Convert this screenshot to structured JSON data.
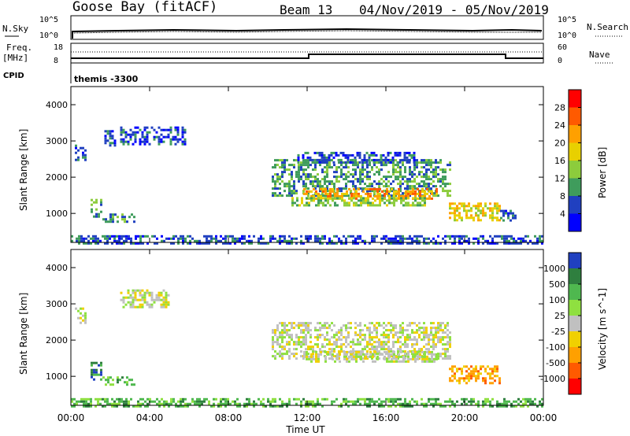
{
  "header": {
    "station": "Goose Bay (fitACF)",
    "beam": "Beam 13",
    "dates": "04/Nov/2019 - 05/Nov/2019"
  },
  "top_panels": {
    "noise": {
      "left_label": "N.Sky",
      "right_label": "N.Search",
      "left_ticks": [
        "10^5",
        "10^0"
      ],
      "right_ticks": [
        "10^5",
        "10^0"
      ]
    },
    "freq": {
      "left_label_1": "Freq.",
      "left_label_2": "[MHz]",
      "right_label": "Nave",
      "left_ticks": [
        "18",
        "8"
      ],
      "right_ticks": [
        "60",
        "0"
      ]
    },
    "cpid": {
      "label": "CPID",
      "program": "themis -3300"
    }
  },
  "chart_data": [
    {
      "type": "heatmap",
      "name": "power",
      "ylabel": "Slant Range [km]",
      "yticks": [
        1000,
        2000,
        3000,
        4000
      ],
      "ylim": [
        200,
        4500
      ],
      "xlabel": "Time UT",
      "xticks": [
        "00:00",
        "04:00",
        "08:00",
        "12:00",
        "16:00",
        "20:00",
        "00:00"
      ],
      "xlim_hours": [
        0,
        24
      ],
      "colorbar": {
        "label": "Power [dB]",
        "ticks": [
          "28",
          "24",
          "20",
          "16",
          "12",
          "8",
          "4"
        ],
        "colors": [
          "#ff0000",
          "#ff5a00",
          "#ffa000",
          "#e8d000",
          "#8ccc3c",
          "#3f9c5c",
          "#2040c0",
          "#0000ff"
        ]
      },
      "regions": [
        {
          "t": [
            0.2,
            0.7
          ],
          "r": [
            2500,
            2900
          ],
          "level": 1
        },
        {
          "t": [
            1.7,
            2.3
          ],
          "r": [
            2900,
            3300
          ],
          "level": 1
        },
        {
          "t": [
            2.5,
            5.8
          ],
          "r": [
            2900,
            3400
          ],
          "level": 1
        },
        {
          "t": [
            1.0,
            1.6
          ],
          "r": [
            900,
            1400
          ],
          "level": 2
        },
        {
          "t": [
            1.6,
            3.2
          ],
          "r": [
            750,
            1000
          ],
          "level": 2
        },
        {
          "t": [
            10.2,
            19.3
          ],
          "r": [
            1500,
            2500
          ],
          "level": 2
        },
        {
          "t": [
            11.8,
            18.6
          ],
          "r": [
            1400,
            1700
          ],
          "level": 5
        },
        {
          "t": [
            11.2,
            18.0
          ],
          "r": [
            1250,
            1450
          ],
          "level": 3
        },
        {
          "t": [
            11.5,
            17.5
          ],
          "r": [
            2400,
            2700
          ],
          "level": 1
        },
        {
          "t": [
            19.2,
            21.8
          ],
          "r": [
            800,
            1300
          ],
          "level": 4
        },
        {
          "t": [
            21.8,
            22.6
          ],
          "r": [
            800,
            1100
          ],
          "level": 1
        },
        {
          "t": [
            0.0,
            24.0
          ],
          "r": [
            200,
            400
          ],
          "level": 1
        }
      ]
    },
    {
      "type": "heatmap",
      "name": "velocity",
      "ylabel": "Slant Range [km]",
      "yticks": [
        1000,
        2000,
        3000,
        4000
      ],
      "ylim": [
        200,
        4500
      ],
      "xlabel": "Time UT",
      "xticks": [
        "00:00",
        "04:00",
        "08:00",
        "12:00",
        "16:00",
        "20:00",
        "00:00"
      ],
      "xlim_hours": [
        0,
        24
      ],
      "colorbar": {
        "label": "Velocity [m s^-1]",
        "ticks": [
          "1000",
          "500",
          "100",
          "25",
          "-25",
          "-100",
          "-500",
          "-1000"
        ],
        "colors": [
          "#2040c0",
          "#2f7f3f",
          "#4fb84f",
          "#8fe040",
          "#c0c0c0",
          "#f0d000",
          "#ffa000",
          "#ff5a00",
          "#ff0000"
        ]
      },
      "regions": [
        {
          "t": [
            0.2,
            0.7
          ],
          "r": [
            2500,
            2900
          ],
          "level": 4
        },
        {
          "t": [
            2.5,
            5.0
          ],
          "r": [
            2900,
            3400
          ],
          "level": 4
        },
        {
          "t": [
            1.0,
            1.6
          ],
          "r": [
            900,
            1400
          ],
          "level": 7
        },
        {
          "t": [
            1.6,
            3.2
          ],
          "r": [
            750,
            1000
          ],
          "level": 6
        },
        {
          "t": [
            10.2,
            19.3
          ],
          "r": [
            1500,
            2500
          ],
          "level": 4
        },
        {
          "t": [
            11.8,
            18.6
          ],
          "r": [
            1400,
            1700
          ],
          "level": 4
        },
        {
          "t": [
            19.2,
            21.8
          ],
          "r": [
            800,
            1300
          ],
          "level": 2
        },
        {
          "t": [
            0.0,
            24.0
          ],
          "r": [
            200,
            400
          ],
          "level": 6
        }
      ]
    }
  ]
}
